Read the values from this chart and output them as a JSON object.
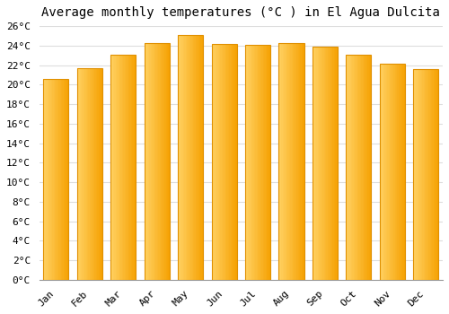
{
  "title": "Average monthly temperatures (°C ) in El Agua Dulcita",
  "months": [
    "Jan",
    "Feb",
    "Mar",
    "Apr",
    "May",
    "Jun",
    "Jul",
    "Aug",
    "Sep",
    "Oct",
    "Nov",
    "Dec"
  ],
  "temperatures": [
    20.6,
    21.7,
    23.1,
    24.3,
    25.1,
    24.2,
    24.1,
    24.3,
    23.9,
    23.1,
    22.1,
    21.6
  ],
  "bar_color_left": "#FFD060",
  "bar_color_right": "#F5A000",
  "bar_color_edge": "#E09000",
  "ylim": [
    0,
    26
  ],
  "ytick_step": 2,
  "background_color": "#ffffff",
  "grid_color": "#dddddd",
  "title_fontsize": 10,
  "tick_fontsize": 8,
  "font_family": "monospace",
  "bar_width": 0.75,
  "gradient_stops": 20
}
